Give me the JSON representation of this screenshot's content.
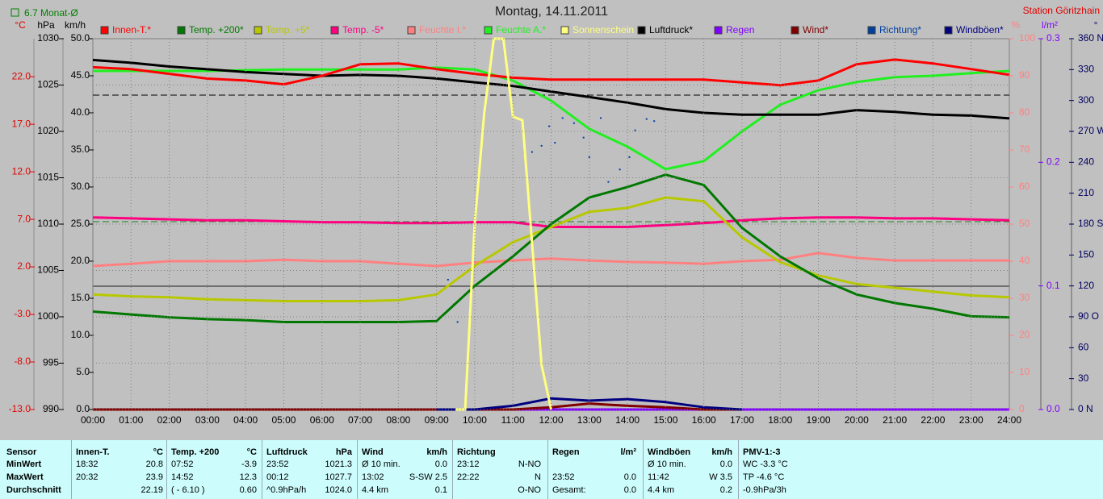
{
  "chart_data": {
    "type": "line",
    "title": "Montag, 14.11.2011",
    "station": "Station Göritzhain",
    "month_average": "6.7 Monat-Ø",
    "grid": true,
    "xlim": [
      0,
      24
    ],
    "x": [
      0,
      1,
      2,
      3,
      4,
      5,
      6,
      7,
      8,
      9,
      10,
      11,
      12,
      13,
      14,
      15,
      16,
      17,
      18,
      19,
      20,
      21,
      22,
      23,
      24
    ],
    "xticks": [
      {
        "value": 0,
        "label": "00:00"
      },
      {
        "value": 1,
        "label": "01:00"
      },
      {
        "value": 2,
        "label": "02:00"
      },
      {
        "value": 3,
        "label": "03:00"
      },
      {
        "value": 4,
        "label": "04:00"
      },
      {
        "value": 5,
        "label": "05:00"
      },
      {
        "value": 6,
        "label": "06:00"
      },
      {
        "value": 7,
        "label": "07:00"
      },
      {
        "value": 8,
        "label": "08:00"
      },
      {
        "value": 9,
        "label": "09:00"
      },
      {
        "value": 10,
        "label": "10:00"
      },
      {
        "value": 11,
        "label": "11:00"
      },
      {
        "value": 12,
        "label": "12:00"
      },
      {
        "value": 13,
        "label": "13:00"
      },
      {
        "value": 14,
        "label": "14:00"
      },
      {
        "value": 15,
        "label": "15:00"
      },
      {
        "value": 16,
        "label": "16:00"
      },
      {
        "value": 17,
        "label": "17:00"
      },
      {
        "value": 18,
        "label": "18:00"
      },
      {
        "value": 19,
        "label": "19:00"
      },
      {
        "value": 20,
        "label": "20:00"
      },
      {
        "value": 21,
        "label": "21:00"
      },
      {
        "value": 22,
        "label": "22:00"
      },
      {
        "value": 23,
        "label": "23:00"
      },
      {
        "value": 24,
        "label": "24:00"
      }
    ],
    "axes": [
      {
        "label": "°C",
        "color": "#e00000",
        "lim": [
          -13,
          26
        ],
        "ticks": [
          {
            "value": -13,
            "label": "-13.0"
          },
          {
            "value": -8,
            "label": "-8.0"
          },
          {
            "value": -3,
            "label": "-3.0"
          },
          {
            "value": 2,
            "label": "2.0"
          },
          {
            "value": 7,
            "label": "7.0"
          },
          {
            "value": 12,
            "label": "12.0"
          },
          {
            "value": 17,
            "label": "17.0"
          },
          {
            "value": 22,
            "label": "22.0"
          }
        ]
      },
      {
        "label": "hPa",
        "color": "#000000",
        "lim": [
          990,
          1030
        ],
        "ticks": [
          990,
          995,
          1000,
          1005,
          1010,
          1015,
          1020,
          1025,
          1030
        ]
      },
      {
        "label": "km/h",
        "color": "#000000",
        "lim": [
          0,
          50
        ],
        "ticks": [
          {
            "value": 0,
            "label": "0.0"
          },
          {
            "value": 5,
            "label": "5.0"
          },
          {
            "value": 10,
            "label": "10.0"
          },
          {
            "value": 15,
            "label": "15.0"
          },
          {
            "value": 20,
            "label": "20.0"
          },
          {
            "value": 25,
            "label": "25.0"
          },
          {
            "value": 30,
            "label": "30.0"
          },
          {
            "value": 35,
            "label": "35.0"
          },
          {
            "value": 40,
            "label": "40.0"
          },
          {
            "value": 45,
            "label": "45.0"
          },
          {
            "value": 50,
            "label": "50.0"
          }
        ]
      },
      {
        "label": "%",
        "color": "#ff8080",
        "lim": [
          0,
          100
        ],
        "ticks": [
          0,
          10,
          20,
          30,
          40,
          50,
          60,
          70,
          80,
          90,
          100
        ]
      },
      {
        "label": "l/m²",
        "color": "#8000ff",
        "lim": [
          0,
          0.3
        ],
        "ticks": [
          {
            "value": 0,
            "label": "0.0"
          },
          {
            "value": 0.1,
            "label": "0.1"
          },
          {
            "value": 0.2,
            "label": "0.2"
          },
          {
            "value": 0.3,
            "label": "0.3"
          }
        ]
      },
      {
        "label": "°",
        "color": "#000060",
        "lim": [
          0,
          360
        ],
        "ticks": [
          {
            "value": 0,
            "label": "0 N"
          },
          30,
          60,
          {
            "value": 90,
            "label": "90 O"
          },
          120,
          150,
          {
            "value": 180,
            "label": "180 S"
          },
          210,
          240,
          {
            "value": 270,
            "label": "270 W"
          },
          300,
          330,
          {
            "value": 360,
            "label": "360 N"
          }
        ]
      }
    ],
    "series": [
      {
        "name": "Innen-T.*",
        "color": "#ff0000",
        "axis": "°C",
        "values": [
          23.0,
          22.8,
          22.3,
          21.8,
          21.6,
          21.2,
          22.1,
          23.3,
          23.4,
          22.8,
          22.3,
          21.9,
          21.7,
          21.7,
          21.7,
          21.7,
          21.7,
          21.4,
          21.1,
          21.6,
          23.3,
          23.8,
          23.4,
          22.8,
          22.2
        ]
      },
      {
        "name": "Temp. +200*",
        "color": "#007800",
        "axis": "°C",
        "values": [
          -2.7,
          -3.0,
          -3.3,
          -3.5,
          -3.6,
          -3.8,
          -3.8,
          -3.8,
          -3.8,
          -3.7,
          0.0,
          3.1,
          6.5,
          9.3,
          10.4,
          11.7,
          10.6,
          6.1,
          3.1,
          0.8,
          -0.9,
          -1.8,
          -2.4,
          -3.2,
          -3.3
        ]
      },
      {
        "name": "Temp. +5*",
        "color": "#b8c800",
        "axis": "°C",
        "values": [
          -0.9,
          -1.1,
          -1.2,
          -1.4,
          -1.5,
          -1.6,
          -1.6,
          -1.6,
          -1.5,
          -0.9,
          2.1,
          4.6,
          6.2,
          7.8,
          8.2,
          9.3,
          8.9,
          5.1,
          2.5,
          1.1,
          0.2,
          -0.2,
          -0.6,
          -1.0,
          -1.2
        ]
      },
      {
        "name": "Temp. -5*",
        "color": "#ff0080",
        "axis": "°C",
        "values": [
          7.2,
          7.1,
          7.0,
          6.9,
          6.9,
          6.8,
          6.7,
          6.7,
          6.6,
          6.6,
          6.7,
          6.7,
          6.2,
          6.2,
          6.2,
          6.4,
          6.6,
          6.9,
          7.1,
          7.2,
          7.2,
          7.1,
          7.1,
          7.0,
          6.9
        ]
      },
      {
        "name": "Feuchte I.*",
        "color": "#ff8080",
        "axis": "%",
        "values": [
          38.7,
          39.3,
          40.0,
          40.0,
          40.0,
          40.4,
          40.0,
          40.0,
          39.3,
          38.7,
          39.6,
          40.2,
          40.7,
          40.2,
          39.8,
          39.6,
          39.3,
          40.0,
          40.4,
          42.2,
          40.9,
          40.2,
          40.2,
          40.2,
          40.2
        ]
      },
      {
        "name": "Feuchte A.*",
        "color": "#20f020",
        "axis": "%",
        "values": [
          91.3,
          91.3,
          91.3,
          91.3,
          91.5,
          91.7,
          91.7,
          91.7,
          91.7,
          92.2,
          91.7,
          88.7,
          83.3,
          75.7,
          70.9,
          64.8,
          67.0,
          75.0,
          82.2,
          86.1,
          88.3,
          89.6,
          90.0,
          90.7,
          91.3
        ]
      },
      {
        "name": "Sonnenschein",
        "color": "#ffff80",
        "axis": "%",
        "x": [
          9.5,
          9.75,
          10,
          10.25,
          10.5,
          10.75,
          11,
          11.25,
          11.5,
          11.75,
          12
        ],
        "values": [
          0,
          0,
          50,
          80,
          100,
          100,
          79,
          78,
          45,
          12,
          0
        ]
      },
      {
        "name": "Luftdruck*",
        "color": "#000000",
        "axis": "hPa",
        "values": [
          1027.7,
          1027.4,
          1027.0,
          1026.7,
          1026.4,
          1026.2,
          1026.0,
          1026.1,
          1026.0,
          1025.7,
          1025.3,
          1024.9,
          1024.3,
          1023.7,
          1023.1,
          1022.4,
          1022.0,
          1021.8,
          1021.8,
          1021.8,
          1022.3,
          1022.1,
          1021.8,
          1021.7,
          1021.4
        ]
      },
      {
        "name": "Regen",
        "color": "#8000ff",
        "axis": "l/m²",
        "values": [
          0,
          0,
          0,
          0,
          0,
          0,
          0,
          0,
          0,
          0,
          0,
          0,
          0,
          0,
          0,
          0,
          0,
          0,
          0,
          0,
          0,
          0,
          0,
          0,
          0
        ]
      },
      {
        "name": "Wind*",
        "color": "#800000",
        "axis": "km/h",
        "values": [
          0,
          0,
          0,
          0,
          0,
          0,
          0,
          0,
          0,
          0,
          0,
          0,
          0.3,
          0.8,
          0.5,
          0.3,
          0,
          0,
          null,
          null,
          null,
          null,
          null,
          null,
          null
        ]
      },
      {
        "name": "Richtung*",
        "color": "#0040a0",
        "axis": "°",
        "type": "scatter",
        "x": [
          9.3,
          9.45,
          9.55,
          11.3,
          11.5,
          11.75,
          11.95,
          12.1,
          12.3,
          12.6,
          12.85,
          13.0,
          13.3,
          13.5,
          13.8,
          14.05,
          14.2,
          14.5,
          14.7
        ],
        "values": [
          126,
          102,
          85,
          250,
          250,
          256,
          275,
          259,
          283,
          278,
          264,
          245,
          283,
          221,
          233,
          245,
          271,
          282,
          280
        ]
      },
      {
        "name": "Windböen*",
        "color": "#000080",
        "axis": "km/h",
        "values": [
          null,
          null,
          null,
          null,
          null,
          null,
          null,
          null,
          null,
          0,
          0,
          0.5,
          1.5,
          1.2,
          1.4,
          1.0,
          0.3,
          0,
          null,
          null,
          null,
          null,
          null,
          null,
          null
        ]
      }
    ]
  },
  "summary": {
    "row_labels": [
      "Sensor",
      "MinWert",
      "MaxWert",
      "Durchschnitt"
    ],
    "groups": [
      {
        "title": "Innen-T.",
        "unit": "°C",
        "rows": [
          {
            "left": "18:32",
            "right": "20.8"
          },
          {
            "left": "20:32",
            "right": "23.9"
          },
          {
            "right": "22.19"
          }
        ]
      },
      {
        "title": "Temp. +200",
        "unit": "°C",
        "rows": [
          {
            "left": "07:52",
            "right": "-3.9"
          },
          {
            "left": "14:52",
            "right": "12.3"
          },
          {
            "left": "( - 6.10 )",
            "right": "0.60"
          }
        ]
      },
      {
        "title": "Luftdruck",
        "unit": "hPa",
        "rows": [
          {
            "left": "23:52",
            "right": "1021.3"
          },
          {
            "left": "00:12",
            "right": "1027.7"
          },
          {
            "left": "^0.9hPa/h",
            "right": "1024.0"
          }
        ]
      },
      {
        "title": "Wind",
        "unit": "km/h",
        "rows": [
          {
            "left": "Ø 10 min.",
            "right": "0.0"
          },
          {
            "left": "13:02",
            "right": "S-SW 2.5"
          },
          {
            "left": "4.4 km",
            "right": "0.1"
          }
        ]
      },
      {
        "title": "Richtung",
        "rows": [
          {
            "left": "23:12",
            "right": "N-NO"
          },
          {
            "left": "22:22",
            "right": "N"
          },
          {
            "right": "O-NO"
          }
        ]
      },
      {
        "title": "Regen",
        "unit": "l/m²",
        "rows": [
          {},
          {
            "left": "23:52",
            "right": "0.0"
          },
          {
            "left": "Gesamt:",
            "right": "0.0"
          }
        ]
      },
      {
        "title": "Windböen",
        "unit": "km/h",
        "rows": [
          {
            "left": "Ø 10 min.",
            "right": "0.0"
          },
          {
            "left": "11:42",
            "right": "W 3.5"
          },
          {
            "left": "4.4 km",
            "right": "0.2"
          }
        ]
      },
      {
        "title": "PMV-1:-3",
        "rows": [
          {
            "left": "WC -3.3 °C"
          },
          {
            "left": "TP -4.6 °C"
          },
          {
            "left": "-0.9hPa/3h"
          }
        ]
      }
    ]
  }
}
